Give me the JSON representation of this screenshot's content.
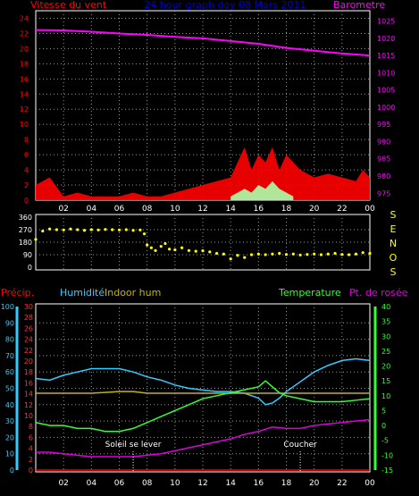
{
  "header": {
    "left_label": "Vitesse du vent",
    "title": "24 hour graph day 08 Mars 2011",
    "right_label": "Barometre"
  },
  "colors": {
    "wind": "#ff0000",
    "gust": "#ffffff",
    "gust_light": "#aaffaa",
    "baro": "#ff00ff",
    "title": "#0000cc",
    "winddir": "#ffff00",
    "humidity": "#33ccff",
    "indoor": "#c8b400",
    "temperature": "#33ff33",
    "dew": "#dd00dd",
    "precip": "#ff0000",
    "rain_axis": "#ff3333",
    "hum_axis": "#33ccff",
    "temp_axis": "#33ff33",
    "baro_axis": "#ff00ff",
    "marker": "#ffffff",
    "grid": "#999999",
    "frame": "#ffffff"
  },
  "labels": {
    "dir_axis": [
      "S",
      "E",
      "N",
      "O",
      "S"
    ],
    "precip": "Précip.",
    "humidity": "Humidité",
    "indoor": "Indoor hum",
    "temperature": "Temperature",
    "dew": "Pt. de rosée",
    "sunrise": "Soleil se lever",
    "sunset": "Coucher"
  },
  "chart_data": [
    {
      "type": "line",
      "panel": "wind_baro",
      "x_ticks": [
        "02",
        "04",
        "06",
        "08",
        "10",
        "12",
        "14",
        "16",
        "18",
        "20",
        "22",
        "00"
      ],
      "xlim": [
        0,
        24
      ],
      "y_left": {
        "label": "Vitesse du vent",
        "ticks": [
          0,
          2,
          4,
          6,
          8,
          10,
          12,
          14,
          16,
          18,
          20,
          22,
          24
        ],
        "ylim": [
          0,
          25
        ]
      },
      "y_right": {
        "label": "Barometre",
        "ticks": [
          975,
          980,
          985,
          990,
          995,
          1000,
          1005,
          1010,
          1015,
          1020,
          1025
        ],
        "ylim": [
          973,
          1028
        ]
      },
      "series": [
        {
          "name": "Barometre",
          "axis": "right",
          "x": [
            0,
            2,
            4,
            6,
            8,
            10,
            12,
            14,
            16,
            18,
            20,
            22,
            24
          ],
          "values": [
            1022.4,
            1022.3,
            1021.9,
            1021.4,
            1021.0,
            1020.4,
            1020.0,
            1019.2,
            1018.4,
            1017.2,
            1016.4,
            1015.6,
            1015.0
          ]
        },
        {
          "axis": "left",
          "style": "filled-spikes",
          "x": [
            0,
            1,
            2,
            3,
            4,
            5,
            6,
            7,
            8,
            9,
            10,
            11,
            12,
            13,
            14,
            14.5,
            15,
            15.5,
            16,
            16.5,
            17,
            17.5,
            18,
            18.5,
            19,
            20,
            21,
            22,
            23,
            23.5,
            24
          ],
          "values": [
            2,
            3,
            0.5,
            1,
            0.5,
            0.5,
            0.5,
            1,
            0.5,
            0.5,
            1,
            1.5,
            2,
            2.5,
            3,
            5,
            7,
            4,
            6,
            5,
            7,
            4,
            6,
            5,
            4,
            3,
            3.5,
            3,
            2.5,
            4,
            3
          ]
        },
        {
          "axis": "left",
          "style": "filled-spikes",
          "x": [
            14,
            15,
            15.5,
            16,
            16.5,
            17,
            17.5,
            18,
            18.5
          ],
          "values": [
            0.5,
            1.5,
            1,
            2,
            1.5,
            2.5,
            1.5,
            1,
            0.5
          ]
        }
      ]
    },
    {
      "type": "scatter",
      "panel": "wind_direction",
      "xlim": [
        0,
        24
      ],
      "y_ticks": [
        0,
        90,
        180,
        270,
        360
      ],
      "ylim": [
        0,
        360
      ],
      "x": [
        0,
        0.5,
        1,
        1.5,
        2,
        2.5,
        3,
        3.5,
        4,
        4.5,
        5,
        5.5,
        6,
        6.5,
        7,
        7.5,
        7.8,
        8,
        8.3,
        8.6,
        9,
        9.3,
        9.6,
        10,
        10.5,
        11,
        11.5,
        12,
        12.5,
        13,
        13.5,
        14,
        14.5,
        15,
        15.5,
        16,
        16.5,
        17,
        17.5,
        18,
        18.5,
        19,
        19.5,
        20,
        20.5,
        21,
        21.5,
        22,
        22.5,
        23,
        23.5,
        24
      ],
      "values": [
        200,
        260,
        275,
        270,
        268,
        275,
        270,
        265,
        270,
        268,
        272,
        270,
        268,
        270,
        265,
        268,
        240,
        160,
        140,
        120,
        150,
        170,
        130,
        125,
        140,
        120,
        115,
        118,
        110,
        100,
        95,
        60,
        85,
        70,
        90,
        95,
        90,
        95,
        100,
        92,
        95,
        88,
        92,
        95,
        90,
        95,
        100,
        92,
        90,
        95,
        105,
        100
      ]
    },
    {
      "type": "line",
      "panel": "hum_temp",
      "xlim": [
        0,
        24
      ],
      "y_precip": {
        "label": "Précip.",
        "ticks": [
          0,
          2,
          4,
          6,
          8,
          10,
          12,
          14,
          16,
          18,
          20,
          22,
          24,
          26,
          28,
          30
        ],
        "ylim": [
          0,
          30
        ]
      },
      "y_humidity": {
        "label": "Humidité",
        "ticks": [
          0,
          10,
          20,
          30,
          40,
          50,
          60,
          70,
          80,
          90,
          100
        ],
        "ylim": [
          0,
          100
        ]
      },
      "y_temp": {
        "label": "Temperature",
        "ticks": [
          -15,
          -10,
          -5,
          0,
          5,
          10,
          15,
          20,
          25,
          30,
          35,
          40
        ],
        "ylim": [
          -15,
          40
        ]
      },
      "series": [
        {
          "name": "Humidité",
          "axis": "humidity",
          "x": [
            0,
            1,
            2,
            3,
            4,
            5,
            6,
            7,
            8,
            9,
            10,
            11,
            12,
            13,
            14,
            15,
            16,
            16.5,
            17,
            17.5,
            18,
            19,
            20,
            21,
            22,
            23,
            24
          ],
          "values": [
            56,
            55,
            58,
            60,
            62,
            62,
            62,
            60,
            57,
            55,
            52,
            50,
            49,
            48,
            48,
            47,
            44,
            40,
            41,
            44,
            48,
            54,
            60,
            64,
            67,
            68,
            67
          ]
        },
        {
          "name": "Indoor hum",
          "axis": "humidity",
          "x": [
            0,
            4,
            6,
            7,
            8,
            12,
            16,
            20,
            24
          ],
          "values": [
            47,
            47,
            48,
            48,
            47,
            47,
            47,
            47,
            47
          ]
        },
        {
          "name": "Temperature",
          "axis": "temp",
          "x": [
            0,
            1,
            2,
            3,
            4,
            5,
            6,
            7,
            8,
            9,
            10,
            11,
            12,
            13,
            14,
            15,
            16,
            16.5,
            17,
            17.5,
            18,
            19,
            20,
            21,
            22,
            23,
            24
          ],
          "values": [
            1,
            0,
            0,
            -1,
            -1,
            -2,
            -2,
            -1,
            1,
            3,
            5,
            7,
            9,
            10,
            11,
            12,
            13,
            15,
            13,
            11,
            10,
            9,
            8,
            8,
            8,
            8.5,
            9
          ]
        },
        {
          "name": "Pt. de rosée",
          "axis": "temp",
          "x": [
            0,
            1,
            2,
            3,
            4,
            5,
            6,
            7,
            8,
            9,
            10,
            11,
            12,
            13,
            14,
            15,
            16,
            17,
            18,
            19,
            20,
            21,
            22,
            23,
            24
          ],
          "values": [
            -9,
            -9,
            -9.5,
            -10,
            -10.5,
            -10.5,
            -10.5,
            -10.5,
            -10,
            -9.5,
            -8.5,
            -7.5,
            -6.5,
            -5.5,
            -4.5,
            -3,
            -2,
            -0.5,
            -1,
            -1,
            0,
            0.5,
            1,
            1.5,
            2
          ]
        },
        {
          "name": "Précip.",
          "axis": "precip",
          "x": [
            0,
            24
          ],
          "values": [
            0,
            0
          ]
        }
      ],
      "markers": [
        {
          "label": "Soleil se lever",
          "x": 7.0
        },
        {
          "label": "Coucher",
          "x": 19.0
        }
      ]
    }
  ]
}
